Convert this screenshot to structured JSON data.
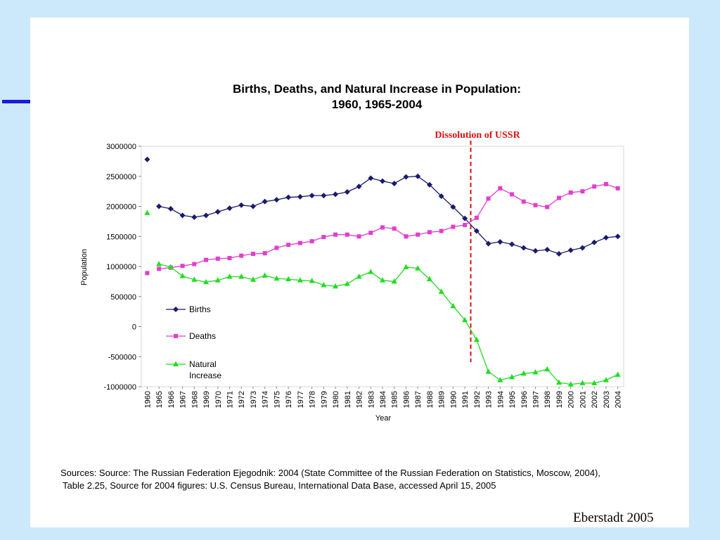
{
  "accent_color": "#1a1ae0",
  "sources": {
    "line1": "Sources: Source: The Russian Federation Ejegodnik: 2004 (State Committee of the Russian Federation on Statistics, Moscow, 2004),",
    "line2": "Table 2.25, Source for 2004 figures: U.S. Census Bureau, International Data Base, accessed April 15, 2005"
  },
  "credit": "Eberstadt 2005",
  "chart_data": {
    "type": "line",
    "title": "Births, Deaths, and Natural Increase in Population:",
    "subtitle": "1960, 1965-2004",
    "xlabel": "Year",
    "ylabel": "Population",
    "ylim": [
      -1000000,
      3000000
    ],
    "yticks": [
      "3000000",
      "2500000",
      "2000000",
      "1500000",
      "1000000",
      "500000",
      "0",
      "-500000",
      "-1000000"
    ],
    "grid": false,
    "legend_position": "bottom-left",
    "categories": [
      "1960",
      "1965",
      "1966",
      "1967",
      "1968",
      "1969",
      "1970",
      "1971",
      "1972",
      "1973",
      "1974",
      "1975",
      "1976",
      "1977",
      "1978",
      "1979",
      "1980",
      "1981",
      "1982",
      "1983",
      "1984",
      "1985",
      "1986",
      "1987",
      "1988",
      "1989",
      "1990",
      "1991",
      "1992",
      "1993",
      "1994",
      "1995",
      "1996",
      "1997",
      "1998",
      "1999",
      "2000",
      "2001",
      "2002",
      "2003",
      "2004"
    ],
    "annotation": {
      "label": "Dissolution of USSR",
      "between": [
        "1991",
        "1992"
      ],
      "color": "#dd1111"
    },
    "series": [
      {
        "name": "Births",
        "color": "#1a1a6e",
        "marker": "diamond",
        "gap_after_first": true,
        "values": [
          2780000,
          2000000,
          1960000,
          1850000,
          1820000,
          1850000,
          1910000,
          1970000,
          2020000,
          2000000,
          2080000,
          2110000,
          2150000,
          2160000,
          2180000,
          2180000,
          2200000,
          2240000,
          2330000,
          2470000,
          2420000,
          2380000,
          2490000,
          2500000,
          2360000,
          2170000,
          1990000,
          1800000,
          1590000,
          1380000,
          1410000,
          1370000,
          1310000,
          1260000,
          1280000,
          1210000,
          1270000,
          1310000,
          1400000,
          1480000,
          1500000
        ]
      },
      {
        "name": "Deaths",
        "color": "#e23ecf",
        "marker": "square",
        "gap_after_first": true,
        "values": [
          890000,
          960000,
          980000,
          1010000,
          1040000,
          1110000,
          1130000,
          1140000,
          1180000,
          1210000,
          1220000,
          1310000,
          1360000,
          1390000,
          1420000,
          1490000,
          1530000,
          1530000,
          1500000,
          1560000,
          1650000,
          1630000,
          1500000,
          1530000,
          1570000,
          1590000,
          1660000,
          1690000,
          1810000,
          2130000,
          2300000,
          2200000,
          2080000,
          2020000,
          1990000,
          2140000,
          2230000,
          2250000,
          2330000,
          2370000,
          2300000
        ]
      },
      {
        "name": "Natural Increase",
        "color": "#22dd22",
        "marker": "triangle",
        "gap_after_first": true,
        "values": [
          1890000,
          1040000,
          990000,
          840000,
          780000,
          740000,
          770000,
          830000,
          830000,
          780000,
          850000,
          800000,
          790000,
          770000,
          760000,
          690000,
          670000,
          710000,
          830000,
          910000,
          770000,
          750000,
          990000,
          970000,
          790000,
          580000,
          340000,
          110000,
          -220000,
          -750000,
          -890000,
          -840000,
          -780000,
          -760000,
          -710000,
          -930000,
          -960000,
          -940000,
          -940000,
          -890000,
          -800000
        ]
      }
    ]
  }
}
